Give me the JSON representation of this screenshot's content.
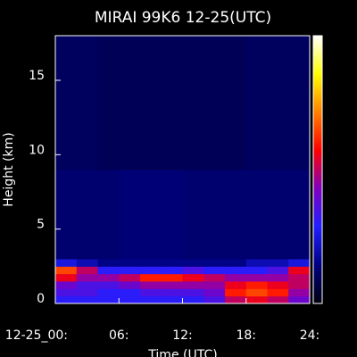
{
  "chart_data": {
    "type": "heatmap",
    "title": "MIRAI 99K6 12-25(UTC)",
    "xlabel": "Time (UTC)",
    "ylabel": "Height (km)",
    "xlim": [
      0,
      24
    ],
    "ylim": [
      0,
      18
    ],
    "xticks": [
      {
        "value": 0,
        "label": "12-25_00:"
      },
      {
        "value": 6,
        "label": "06:"
      },
      {
        "value": 12,
        "label": "12:"
      },
      {
        "value": 18,
        "label": "18:"
      },
      {
        "value": 24,
        "label": "24:"
      }
    ],
    "yticks": [
      0,
      5,
      10,
      15
    ],
    "xbins": [
      0,
      2,
      4,
      6,
      8,
      10,
      12,
      14,
      16,
      18,
      20,
      22,
      24
    ],
    "ybins": [
      0,
      0.5,
      1,
      1.5,
      2,
      2.5,
      3,
      9,
      18
    ],
    "values": [
      [
        0.3,
        0.3,
        0.3,
        0.3,
        0.3,
        0.3,
        0.3,
        0.35,
        0.5,
        0.55,
        0.5,
        0.4
      ],
      [
        0.35,
        0.35,
        0.3,
        0.3,
        0.35,
        0.35,
        0.35,
        0.4,
        0.6,
        0.65,
        0.6,
        0.45
      ],
      [
        0.4,
        0.35,
        0.35,
        0.4,
        0.45,
        0.45,
        0.45,
        0.45,
        0.55,
        0.6,
        0.55,
        0.5
      ],
      [
        0.55,
        0.45,
        0.45,
        0.5,
        0.6,
        0.6,
        0.55,
        0.5,
        0.45,
        0.45,
        0.45,
        0.5
      ],
      [
        0.65,
        0.5,
        0.3,
        0.3,
        0.3,
        0.3,
        0.35,
        0.3,
        0.3,
        0.3,
        0.35,
        0.55
      ],
      [
        0.25,
        0.2,
        0.15,
        0.15,
        0.15,
        0.15,
        0.15,
        0.15,
        0.15,
        0.2,
        0.2,
        0.25
      ],
      [
        0.12,
        0.12,
        0.12,
        0.13,
        0.13,
        0.13,
        0.12,
        0.12,
        0.12,
        0.12,
        0.12,
        0.12
      ],
      [
        0.1,
        0.1,
        0.09,
        0.09,
        0.09,
        0.09,
        0.09,
        0.09,
        0.09,
        0.1,
        0.1,
        0.1
      ]
    ],
    "colormap": [
      "#000010",
      "#000080",
      "#2020ff",
      "#8000c0",
      "#ff0000",
      "#ff8000",
      "#ffff00",
      "#ffffff"
    ]
  }
}
